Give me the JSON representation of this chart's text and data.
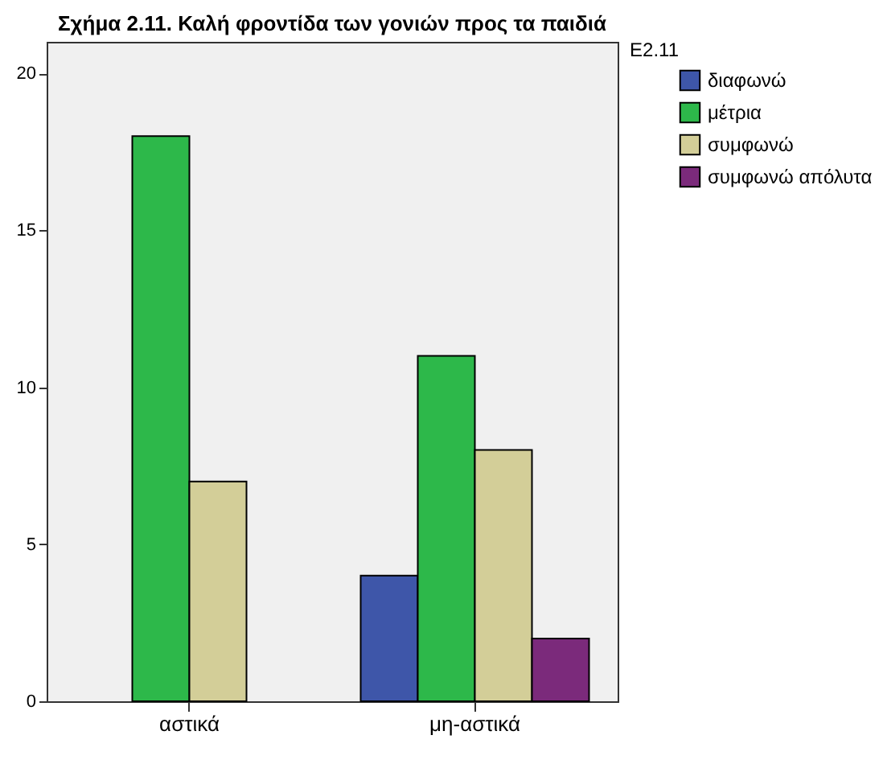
{
  "chart_data": {
    "type": "bar",
    "title": "Σχήμα 2.11. Καλή φροντίδα των γονιών προς τα παιδιά",
    "legend_title": "E2.11",
    "categories": [
      "αστικά",
      "μη-αστικά"
    ],
    "series": [
      {
        "name": "διαφωνώ",
        "color": "#3e56a9",
        "values": [
          null,
          4
        ]
      },
      {
        "name": "μέτρια",
        "color": "#2db84a",
        "values": [
          18,
          11
        ]
      },
      {
        "name": "συμφωνώ",
        "color": "#d3ce98",
        "values": [
          7,
          8
        ]
      },
      {
        "name": "συμφωνώ απόλυτα",
        "color": "#7b2a7b",
        "values": [
          null,
          2
        ]
      }
    ],
    "ylim": [
      0,
      21
    ],
    "yticks": [
      0,
      5,
      10,
      15,
      20
    ],
    "grid": false,
    "legend": "top right"
  }
}
